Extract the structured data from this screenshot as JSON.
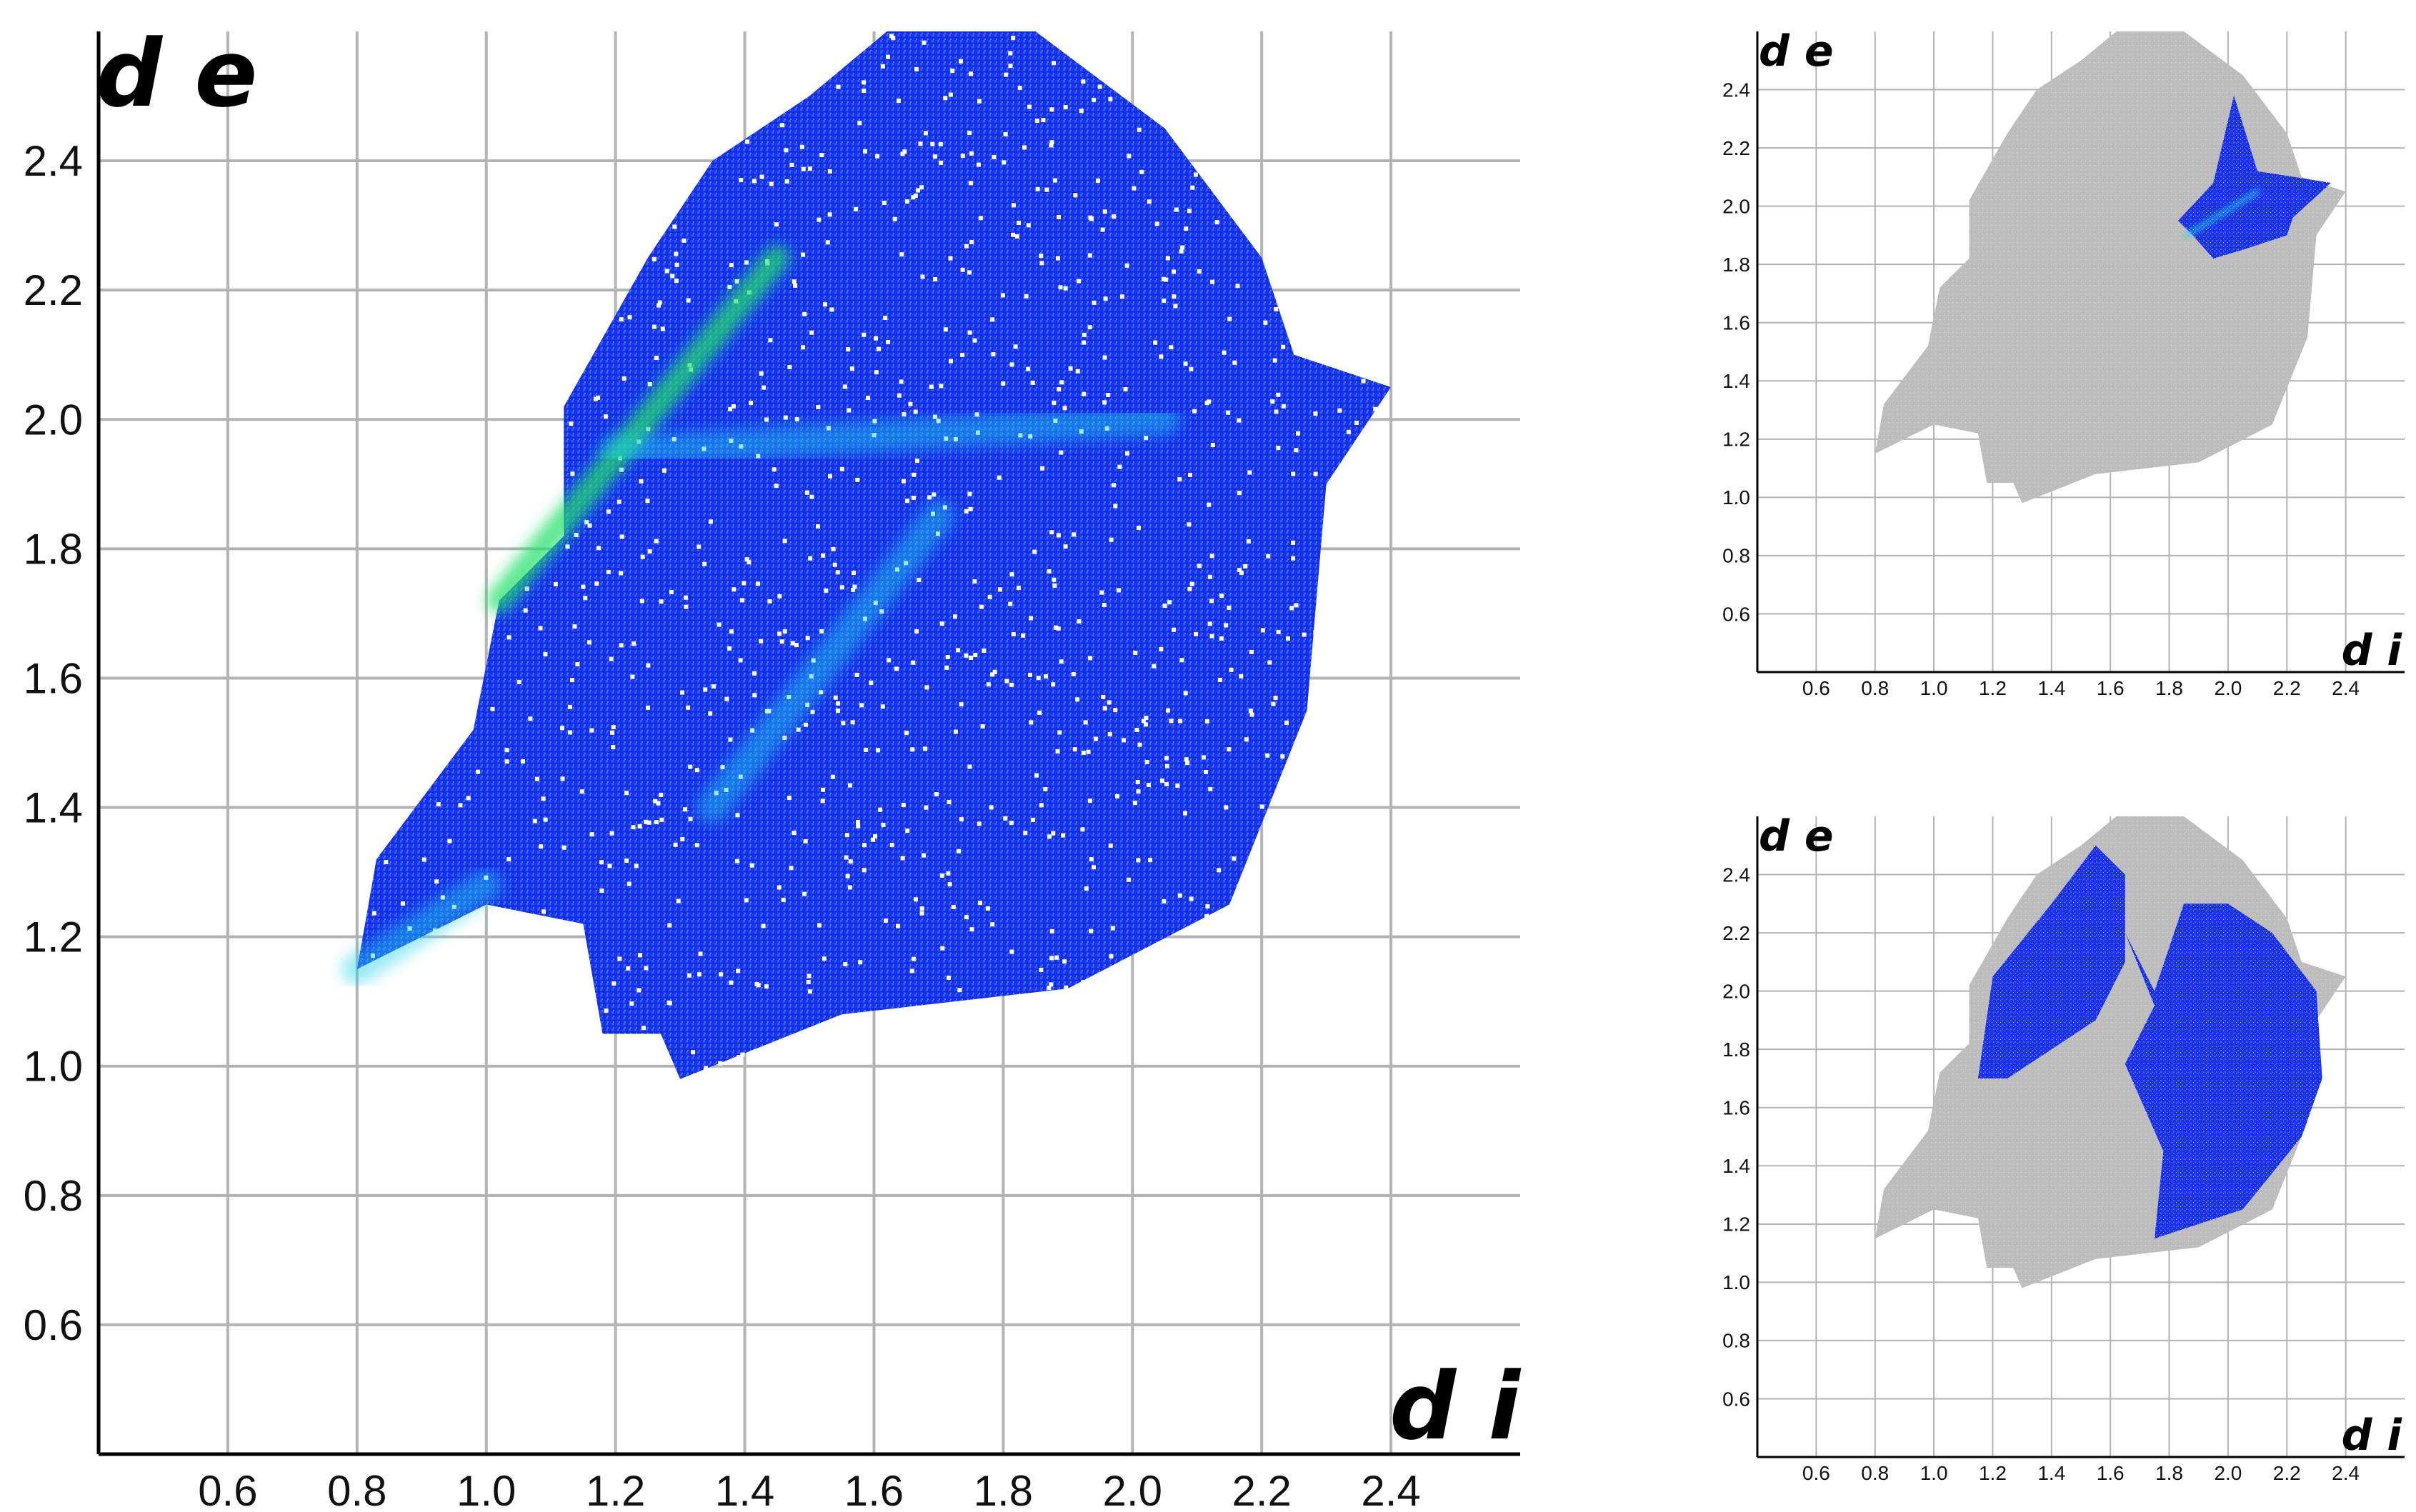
{
  "colors": {
    "grid": "#b3b3b3",
    "axis": "#000000",
    "background": "#ffffff",
    "highlight_blue": "#1a2ff0",
    "cyan": "#22d3e8",
    "green": "#22e06a",
    "grey_points": "#bdbdbd"
  },
  "chart_data": [
    {
      "id": "main-fingerprint",
      "type": "heatmap",
      "title": "",
      "xlabel": "d i",
      "ylabel": "d e",
      "xlim": [
        0.4,
        2.6
      ],
      "ylim": [
        0.4,
        2.6
      ],
      "x_ticks": [
        "0.6",
        "0.8",
        "1.0",
        "1.2",
        "1.4",
        "1.6",
        "1.8",
        "2.0",
        "2.2",
        "2.4"
      ],
      "y_ticks": [
        "0.6",
        "0.8",
        "1.0",
        "1.2",
        "1.4",
        "1.6",
        "1.8",
        "2.0",
        "2.2",
        "2.4"
      ],
      "grid": true,
      "region_outline": [
        [
          0.8,
          1.15
        ],
        [
          0.83,
          1.32
        ],
        [
          0.98,
          1.52
        ],
        [
          1.02,
          1.72
        ],
        [
          1.12,
          1.82
        ],
        [
          1.12,
          2.02
        ],
        [
          1.25,
          2.25
        ],
        [
          1.35,
          2.4
        ],
        [
          1.5,
          2.5
        ],
        [
          1.62,
          2.6
        ],
        [
          1.85,
          2.6
        ],
        [
          2.05,
          2.45
        ],
        [
          2.2,
          2.25
        ],
        [
          2.25,
          2.1
        ],
        [
          2.4,
          2.05
        ],
        [
          2.3,
          1.9
        ],
        [
          2.27,
          1.55
        ],
        [
          2.15,
          1.25
        ],
        [
          1.9,
          1.12
        ],
        [
          1.55,
          1.08
        ],
        [
          1.3,
          0.98
        ],
        [
          1.27,
          1.05
        ],
        [
          1.18,
          1.05
        ],
        [
          1.15,
          1.22
        ],
        [
          1.0,
          1.25
        ],
        [
          0.8,
          1.15
        ]
      ],
      "hot_streaks": [
        {
          "from": [
            1.02,
            1.72
          ],
          "to": [
            1.45,
            2.25
          ],
          "intensity": "green"
        },
        {
          "from": [
            1.2,
            1.95
          ],
          "to": [
            2.05,
            2.0
          ],
          "intensity": "cyan"
        },
        {
          "from": [
            1.35,
            1.4
          ],
          "to": [
            1.7,
            1.85
          ],
          "intensity": "cyan"
        },
        {
          "from": [
            0.8,
            1.15
          ],
          "to": [
            1.0,
            1.28
          ],
          "intensity": "cyan"
        }
      ]
    },
    {
      "id": "top-right-decomposed",
      "type": "scatter",
      "title": "",
      "xlabel": "d i",
      "ylabel": "d e",
      "xlim": [
        0.4,
        2.6
      ],
      "ylim": [
        0.4,
        2.6
      ],
      "x_ticks": [
        "0.6",
        "0.8",
        "1.0",
        "1.2",
        "1.4",
        "1.6",
        "1.8",
        "2.0",
        "2.2",
        "2.4"
      ],
      "y_ticks": [
        "0.6",
        "0.8",
        "1.0",
        "1.2",
        "1.4",
        "1.6",
        "1.8",
        "2.0",
        "2.2",
        "2.4"
      ],
      "grid": true,
      "background_region": "full fingerprint outline in grey",
      "highlight_outline": [
        [
          1.83,
          1.95
        ],
        [
          1.95,
          2.08
        ],
        [
          2.02,
          2.38
        ],
        [
          2.1,
          2.12
        ],
        [
          2.35,
          2.08
        ],
        [
          2.22,
          1.96
        ],
        [
          2.2,
          1.9
        ],
        [
          2.05,
          1.85
        ],
        [
          1.95,
          1.82
        ],
        [
          1.88,
          1.9
        ],
        [
          1.83,
          1.95
        ]
      ]
    },
    {
      "id": "bottom-right-decomposed",
      "type": "scatter",
      "title": "",
      "xlabel": "d i",
      "ylabel": "d e",
      "xlim": [
        0.4,
        2.6
      ],
      "ylim": [
        0.4,
        2.6
      ],
      "x_ticks": [
        "0.6",
        "0.8",
        "1.0",
        "1.2",
        "1.4",
        "1.6",
        "1.8",
        "2.0",
        "2.2",
        "2.4"
      ],
      "y_ticks": [
        "0.6",
        "0.8",
        "1.0",
        "1.2",
        "1.4",
        "1.6",
        "1.8",
        "2.0",
        "2.2",
        "2.4"
      ],
      "grid": true,
      "background_region": "full fingerprint outline in grey",
      "highlight_outlines": [
        [
          [
            1.15,
            1.7
          ],
          [
            1.2,
            2.05
          ],
          [
            1.4,
            2.3
          ],
          [
            1.55,
            2.5
          ],
          [
            1.65,
            2.4
          ],
          [
            1.65,
            2.1
          ],
          [
            1.55,
            1.9
          ],
          [
            1.4,
            1.8
          ],
          [
            1.25,
            1.7
          ],
          [
            1.15,
            1.7
          ]
        ],
        [
          [
            1.65,
            2.2
          ],
          [
            1.75,
            2.0
          ],
          [
            1.85,
            2.3
          ],
          [
            2.0,
            2.3
          ],
          [
            2.15,
            2.2
          ],
          [
            2.3,
            2.0
          ],
          [
            2.32,
            1.7
          ],
          [
            2.25,
            1.5
          ],
          [
            2.05,
            1.25
          ],
          [
            1.75,
            1.15
          ],
          [
            1.78,
            1.45
          ],
          [
            1.65,
            1.75
          ],
          [
            1.75,
            1.95
          ],
          [
            1.65,
            2.2
          ]
        ]
      ]
    }
  ]
}
